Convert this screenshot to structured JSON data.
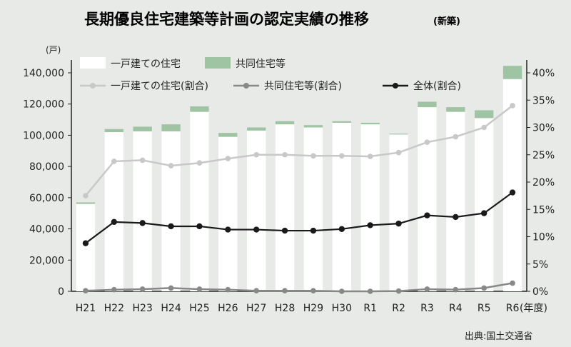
{
  "chart_data": {
    "type": "bar+line",
    "title": "長期優良住宅建築等計画の認定実績の推移",
    "subtitle": "(新築)",
    "y_left_unit": "(戸)",
    "x_unit": "(年度)",
    "source": "出典:国土交通省",
    "categories": [
      "H21",
      "H22",
      "H23",
      "H24",
      "H25",
      "H26",
      "H27",
      "H28",
      "H29",
      "H30",
      "R1",
      "R2",
      "R3",
      "R4",
      "R5",
      "R6"
    ],
    "ylim_left": [
      0,
      140000
    ],
    "y_left_ticks": [
      "0",
      "20,000",
      "40,000",
      "60,000",
      "80,000",
      "100,000",
      "120,000",
      "140,000"
    ],
    "ylim_right": [
      0,
      40
    ],
    "y_right_ticks": [
      "0%",
      "5%",
      "10%",
      "15%",
      "20%",
      "25%",
      "30%",
      "35%",
      "40%"
    ],
    "stacked_series": [
      {
        "name": "一戸建ての住宅",
        "color": "#ffffff",
        "values": [
          56000,
          102000,
          102500,
          102500,
          115000,
          99000,
          103000,
          107000,
          105000,
          108000,
          107000,
          100500,
          118000,
          115000,
          111000,
          136000
        ]
      },
      {
        "name": "共同住宅等",
        "color": "#9fc4a4",
        "values": [
          1000,
          2000,
          3000,
          4500,
          3500,
          2500,
          2000,
          2000,
          1500,
          1000,
          1000,
          500,
          3500,
          3000,
          5000,
          8500
        ]
      }
    ],
    "line_series": [
      {
        "name": "一戸建ての住宅(割合)",
        "color": "#c8c8c8",
        "values": [
          17.5,
          23.8,
          24.0,
          23.0,
          23.5,
          24.3,
          25.0,
          25.0,
          24.8,
          24.8,
          24.7,
          25.4,
          27.3,
          28.3,
          30.0,
          34.0
        ]
      },
      {
        "name": "共同住宅等(割合)",
        "color": "#888888",
        "values": [
          0.1,
          0.3,
          0.4,
          0.6,
          0.4,
          0.3,
          0.1,
          0.1,
          0.1,
          0.0,
          0.0,
          0.05,
          0.4,
          0.3,
          0.6,
          1.5
        ]
      },
      {
        "name": "全体(割合)",
        "color": "#1a1a1a",
        "values": [
          8.8,
          12.7,
          12.5,
          11.9,
          11.9,
          11.3,
          11.3,
          11.1,
          11.1,
          11.4,
          12.1,
          12.4,
          13.9,
          13.6,
          14.3,
          18.1
        ]
      }
    ],
    "grid": false,
    "legend_position": "top-left"
  }
}
